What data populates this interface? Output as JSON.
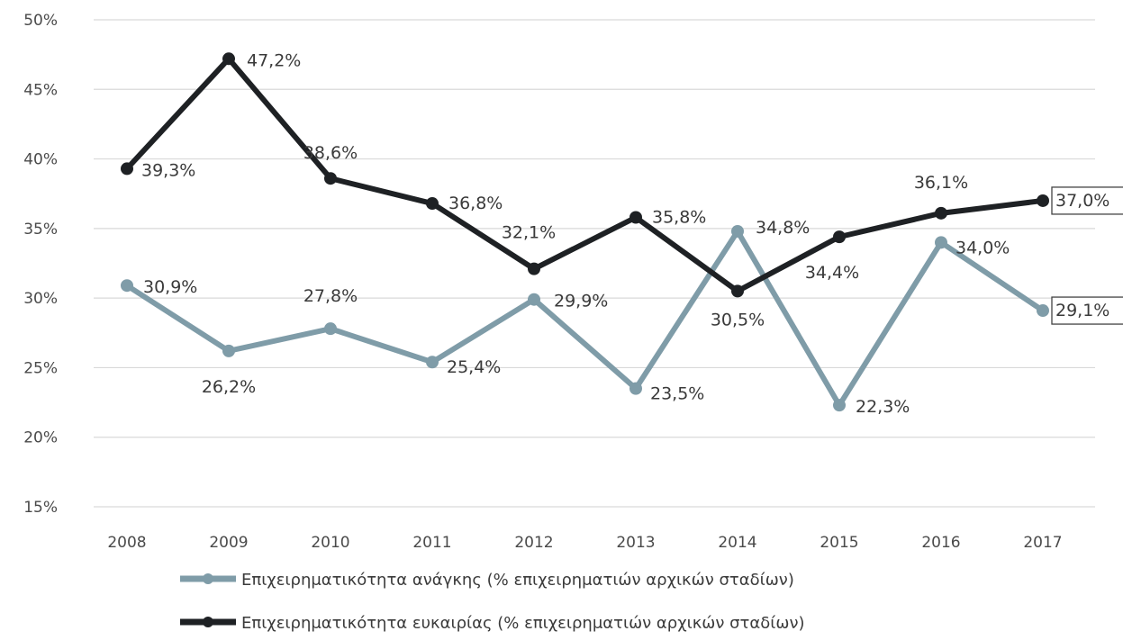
{
  "chart_data": {
    "type": "line",
    "title": "",
    "xlabel": "",
    "ylabel": "",
    "ylim": [
      15,
      50
    ],
    "yticks": [
      15,
      20,
      25,
      30,
      35,
      40,
      45,
      50
    ],
    "ytick_labels": [
      "15%",
      "20%",
      "25%",
      "30%",
      "35%",
      "40%",
      "45%",
      "50%"
    ],
    "x": [
      "2008",
      "2009",
      "2010",
      "2011",
      "2012",
      "2013",
      "2014",
      "2015",
      "2016",
      "2017"
    ],
    "grid": "horizontal",
    "legend_position": "bottom",
    "series": [
      {
        "name": "Επιχειρηματικότητα ανάγκης (% επιχειρηματιών αρχικών σταδίων)",
        "color": "#7f9ca8",
        "values": [
          30.9,
          26.2,
          27.8,
          25.4,
          29.9,
          23.5,
          34.8,
          22.3,
          34.0,
          29.1
        ],
        "labels": [
          "30,9%",
          "26,2%",
          "27,8%",
          "25,4%",
          "29,9%",
          "23,5%",
          "34,8%",
          "22,3%",
          "34,0%",
          "29,1%"
        ]
      },
      {
        "name": "Επιχειρηματικότητα ευκαιρίας (% επιχειρηματιών αρχικών σταδίων)",
        "color": "#1e2124",
        "values": [
          39.3,
          47.2,
          38.6,
          36.8,
          32.1,
          35.8,
          30.5,
          34.4,
          36.1,
          37.0
        ],
        "labels": [
          "39,3%",
          "47,2%",
          "38,6%",
          "36,8%",
          "32,1%",
          "35,8%",
          "30,5%",
          "34,4%",
          "36,1%",
          "37,0%"
        ]
      }
    ]
  }
}
